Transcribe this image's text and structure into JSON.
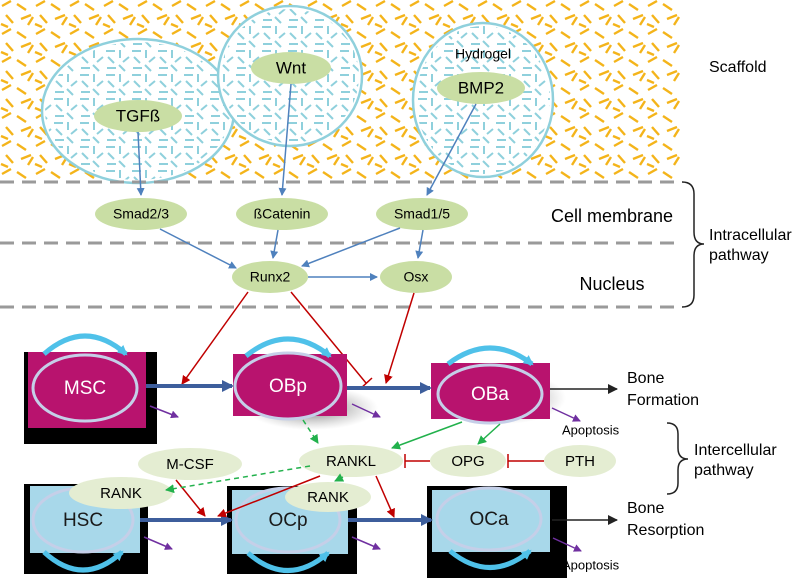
{
  "scaffold_label": "Scaffold",
  "hydrogel_label": "Hydrogel",
  "growth_factors": {
    "tgfb": "TGFß",
    "wnt": "Wnt",
    "bmp2": "BMP2"
  },
  "signals": {
    "smad23": "Smad2/3",
    "bcatenin": "ßCatenin",
    "smad15": "Smad1/5",
    "runx2": "Runx2",
    "osx": "Osx"
  },
  "zones": {
    "cell_membrane": "Cell membrane",
    "nucleus": "Nucleus"
  },
  "pathways": {
    "intracellular_line1": "Intracellular",
    "intracellular_line2": "pathway",
    "intercellular_line1": "Intercellular",
    "intercellular_line2": "pathway"
  },
  "cells": {
    "msc": "MSC",
    "obp": "OBp",
    "oba": "OBa",
    "hsc": "HSC",
    "ocp": "OCp",
    "oca": "OCa"
  },
  "factors": {
    "mcsf": "M-CSF",
    "rankl": "RANKL",
    "opg": "OPG",
    "pth": "PTH",
    "rank_hsc": "RANK",
    "rank_ocp": "RANK"
  },
  "outcomes": {
    "bone_formation_line1": "Bone",
    "bone_formation_line2": "Formation",
    "bone_resorption_line1": "Bone",
    "bone_resorption_line2": "Resorption",
    "apoptosis_top": "Apoptosis",
    "apoptosis_bottom": "Apoptosis"
  },
  "colors": {
    "scaffold_dash": "#f4b41a",
    "hydrogel": "#8fd0dc",
    "node_fill": "#c9dea4",
    "osteoblast_fill": "#b8136e",
    "osteoclast_fill": "#a8d8ea",
    "blue_arrow": "#4f81bd",
    "red_arrow": "#c00000",
    "green_arrow": "#22b14c",
    "purple_arrow": "#7030a0",
    "loop": "#4fc1e9"
  }
}
